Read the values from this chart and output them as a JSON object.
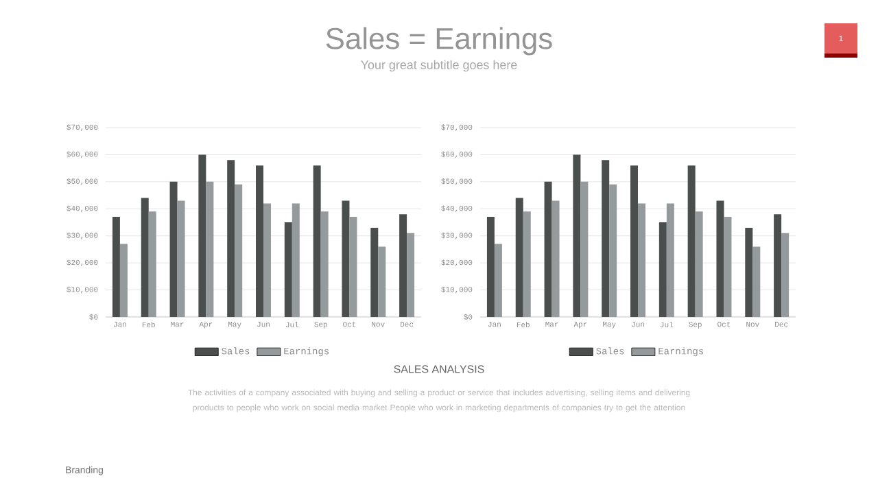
{
  "chart_data": [
    {
      "type": "bar",
      "title": "Sales = Earnings",
      "subtitle": "Your great subtitle goes here",
      "categories": [
        "Jan",
        "Feb",
        "Mar",
        "Apr",
        "May",
        "Jun",
        "Jul",
        "Sep",
        "Oct",
        "Nov",
        "Dec"
      ],
      "series": [
        {
          "name": "Sales",
          "color": "#4a4f4e",
          "values": [
            37000,
            44000,
            50000,
            60000,
            58000,
            56000,
            35000,
            56000,
            43000,
            33000,
            38000
          ]
        },
        {
          "name": "Earnings",
          "color": "#959a9d",
          "values": [
            27000,
            39000,
            43000,
            50000,
            49000,
            42000,
            42000,
            39000,
            37000,
            26000,
            31000
          ]
        }
      ],
      "ylim": [
        0,
        70000
      ],
      "yticks": [
        {
          "value": 0,
          "label": "$0"
        },
        {
          "value": 10000,
          "label": "$10,000"
        },
        {
          "value": 20000,
          "label": "$20,000"
        },
        {
          "value": 30000,
          "label": "$30,000"
        },
        {
          "value": 40000,
          "label": "$40,000"
        },
        {
          "value": 50000,
          "label": "$50,000"
        },
        {
          "value": 60000,
          "label": "$60,000"
        },
        {
          "value": 70000,
          "label": "$70,000"
        }
      ],
      "grid": "y",
      "legend": "bottom"
    },
    {
      "type": "bar",
      "categories": [
        "Jan",
        "Feb",
        "Mar",
        "Apr",
        "May",
        "Jun",
        "Jul",
        "Sep",
        "Oct",
        "Nov",
        "Dec"
      ],
      "series": [
        {
          "name": "Sales",
          "color": "#4a4f4e",
          "values": [
            37000,
            44000,
            50000,
            60000,
            58000,
            56000,
            35000,
            56000,
            43000,
            33000,
            38000
          ]
        },
        {
          "name": "Earnings",
          "color": "#959a9d",
          "values": [
            27000,
            39000,
            43000,
            50000,
            49000,
            42000,
            42000,
            39000,
            37000,
            26000,
            31000
          ]
        }
      ],
      "ylim": [
        0,
        70000
      ],
      "yticks": [
        {
          "value": 0,
          "label": "$0"
        },
        {
          "value": 10000,
          "label": "$10,000"
        },
        {
          "value": 20000,
          "label": "$20,000"
        },
        {
          "value": 30000,
          "label": "$30,000"
        },
        {
          "value": 40000,
          "label": "$40,000"
        },
        {
          "value": 50000,
          "label": "$50,000"
        },
        {
          "value": 60000,
          "label": "$60,000"
        },
        {
          "value": 70000,
          "label": "$70,000"
        }
      ],
      "grid": "y",
      "legend": "bottom",
      "annotations": [
        "SALES ANALYSIS",
        "The activities of a company associated with buying and selling a product or service that includes advertising, selling items and delivering products to people who work on social media market People who work in marketing departments of companies try to get the attention",
        "Branding",
        "1"
      ]
    }
  ]
}
